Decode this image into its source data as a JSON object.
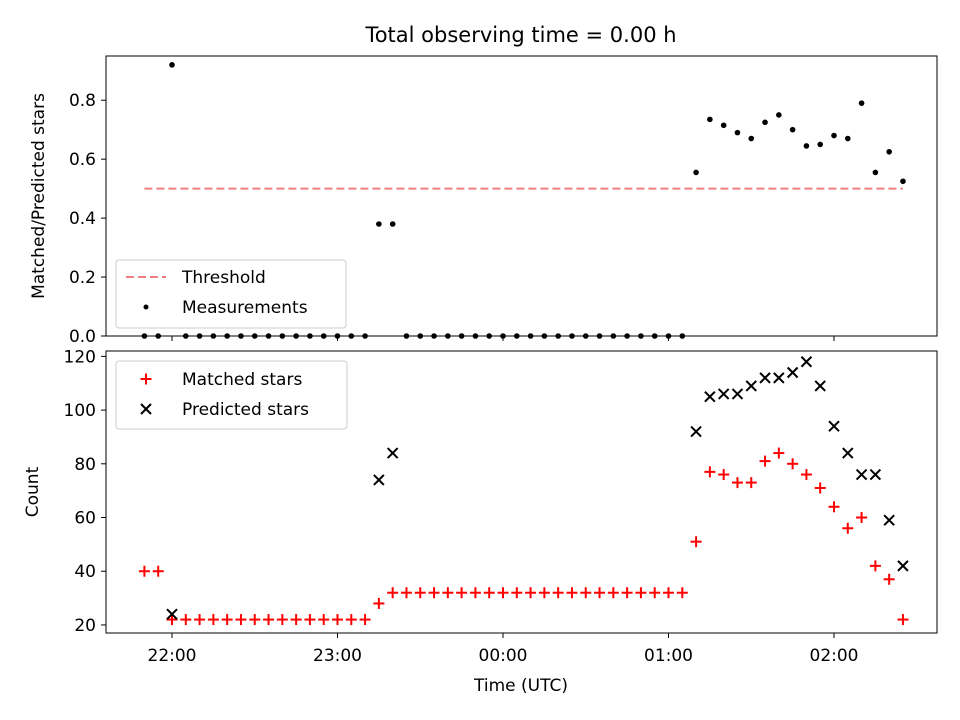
{
  "chart_data": {
    "title": "Total observing time = 0.00 h",
    "xlabel": "Time (UTC)",
    "x_tick_labels": [
      "22:00",
      "23:00",
      "00:00",
      "01:00",
      "02:00"
    ],
    "x_tick_minutes": [
      0,
      60,
      120,
      180,
      240
    ],
    "x_unit_note": "",
    "panels": [
      {
        "type": "scatter",
        "ylabel": "Matched/Predicted stars",
        "ylim": [
          0,
          0.95
        ],
        "yticks": [
          0.0,
          0.2,
          0.4,
          0.6,
          0.8
        ],
        "ytick_labels": [
          "0.0",
          "0.2",
          "0.4",
          "0.6",
          "0.8"
        ],
        "legend_position": "lower-left",
        "threshold": {
          "name": "Threshold",
          "value": 0.5,
          "x_range": [
            "21:50",
            "02:25"
          ],
          "color": "#f08080"
        },
        "series": [
          {
            "name": "Measurements",
            "color": "#000000",
            "marker": "dot",
            "points": [
              [
                "21:50",
                0
              ],
              [
                "21:55",
                0
              ],
              [
                "22:00",
                0.92
              ],
              [
                "22:05",
                0
              ],
              [
                "22:10",
                0
              ],
              [
                "22:15",
                0
              ],
              [
                "22:20",
                0
              ],
              [
                "22:25",
                0
              ],
              [
                "22:30",
                0
              ],
              [
                "22:35",
                0
              ],
              [
                "22:40",
                0
              ],
              [
                "22:45",
                0
              ],
              [
                "22:50",
                0
              ],
              [
                "22:55",
                0
              ],
              [
                "23:00",
                0
              ],
              [
                "23:05",
                0
              ],
              [
                "23:10",
                0
              ],
              [
                "23:15",
                0.38
              ],
              [
                "23:20",
                0.38
              ],
              [
                "23:25",
                0
              ],
              [
                "23:30",
                0
              ],
              [
                "23:35",
                0
              ],
              [
                "23:40",
                0
              ],
              [
                "23:45",
                0
              ],
              [
                "23:50",
                0
              ],
              [
                "23:55",
                0
              ],
              [
                "00:00",
                0
              ],
              [
                "00:05",
                0
              ],
              [
                "00:10",
                0
              ],
              [
                "00:15",
                0
              ],
              [
                "00:20",
                0
              ],
              [
                "00:25",
                0
              ],
              [
                "00:30",
                0
              ],
              [
                "00:35",
                0
              ],
              [
                "00:40",
                0
              ],
              [
                "00:45",
                0
              ],
              [
                "00:50",
                0
              ],
              [
                "00:55",
                0
              ],
              [
                "01:00",
                0
              ],
              [
                "01:05",
                0
              ],
              [
                "01:10",
                0.555
              ],
              [
                "01:15",
                0.735
              ],
              [
                "01:20",
                0.715
              ],
              [
                "01:25",
                0.69
              ],
              [
                "01:30",
                0.67
              ],
              [
                "01:35",
                0.725
              ],
              [
                "01:40",
                0.75
              ],
              [
                "01:45",
                0.7
              ],
              [
                "01:50",
                0.645
              ],
              [
                "01:55",
                0.65
              ],
              [
                "02:00",
                0.68
              ],
              [
                "02:05",
                0.67
              ],
              [
                "02:10",
                0.79
              ],
              [
                "02:15",
                0.555
              ],
              [
                "02:20",
                0.625
              ],
              [
                "02:25",
                0.525
              ]
            ]
          }
        ]
      },
      {
        "type": "scatter",
        "ylabel": "Count",
        "ylim": [
          17,
          122
        ],
        "yticks": [
          20,
          40,
          60,
          80,
          100,
          120
        ],
        "ytick_labels": [
          "20",
          "40",
          "60",
          "80",
          "100",
          "120"
        ],
        "legend_position": "upper-left",
        "series": [
          {
            "name": "Matched stars",
            "color": "#ff0000",
            "marker": "plus",
            "points": [
              [
                "21:50",
                40
              ],
              [
                "21:55",
                40
              ],
              [
                "22:00",
                22
              ],
              [
                "22:05",
                22
              ],
              [
                "22:10",
                22
              ],
              [
                "22:15",
                22
              ],
              [
                "22:20",
                22
              ],
              [
                "22:25",
                22
              ],
              [
                "22:30",
                22
              ],
              [
                "22:35",
                22
              ],
              [
                "22:40",
                22
              ],
              [
                "22:45",
                22
              ],
              [
                "22:50",
                22
              ],
              [
                "22:55",
                22
              ],
              [
                "23:00",
                22
              ],
              [
                "23:05",
                22
              ],
              [
                "23:10",
                22
              ],
              [
                "23:15",
                28
              ],
              [
                "23:20",
                32
              ],
              [
                "23:25",
                32
              ],
              [
                "23:30",
                32
              ],
              [
                "23:35",
                32
              ],
              [
                "23:40",
                32
              ],
              [
                "23:45",
                32
              ],
              [
                "23:50",
                32
              ],
              [
                "23:55",
                32
              ],
              [
                "00:00",
                32
              ],
              [
                "00:05",
                32
              ],
              [
                "00:10",
                32
              ],
              [
                "00:15",
                32
              ],
              [
                "00:20",
                32
              ],
              [
                "00:25",
                32
              ],
              [
                "00:30",
                32
              ],
              [
                "00:35",
                32
              ],
              [
                "00:40",
                32
              ],
              [
                "00:45",
                32
              ],
              [
                "00:50",
                32
              ],
              [
                "00:55",
                32
              ],
              [
                "01:00",
                32
              ],
              [
                "01:05",
                32
              ],
              [
                "01:10",
                51
              ],
              [
                "01:15",
                77
              ],
              [
                "01:20",
                76
              ],
              [
                "01:25",
                73
              ],
              [
                "01:30",
                73
              ],
              [
                "01:35",
                81
              ],
              [
                "01:40",
                84
              ],
              [
                "01:45",
                80
              ],
              [
                "01:50",
                76
              ],
              [
                "01:55",
                71
              ],
              [
                "02:00",
                64
              ],
              [
                "02:05",
                56
              ],
              [
                "02:10",
                60
              ],
              [
                "02:15",
                42
              ],
              [
                "02:20",
                37
              ],
              [
                "02:25",
                22
              ]
            ]
          },
          {
            "name": "Predicted stars",
            "color": "#000000",
            "marker": "x",
            "points": [
              [
                "22:00",
                24
              ],
              [
                "23:15",
                74
              ],
              [
                "23:20",
                84
              ],
              [
                "01:10",
                92
              ],
              [
                "01:15",
                105
              ],
              [
                "01:20",
                106
              ],
              [
                "01:25",
                106
              ],
              [
                "01:30",
                109
              ],
              [
                "01:35",
                112
              ],
              [
                "01:40",
                112
              ],
              [
                "01:45",
                114
              ],
              [
                "01:50",
                118
              ],
              [
                "01:55",
                109
              ],
              [
                "02:00",
                94
              ],
              [
                "02:05",
                84
              ],
              [
                "02:10",
                76
              ],
              [
                "02:15",
                76
              ],
              [
                "02:20",
                59
              ],
              [
                "02:25",
                42
              ]
            ]
          }
        ]
      }
    ]
  }
}
